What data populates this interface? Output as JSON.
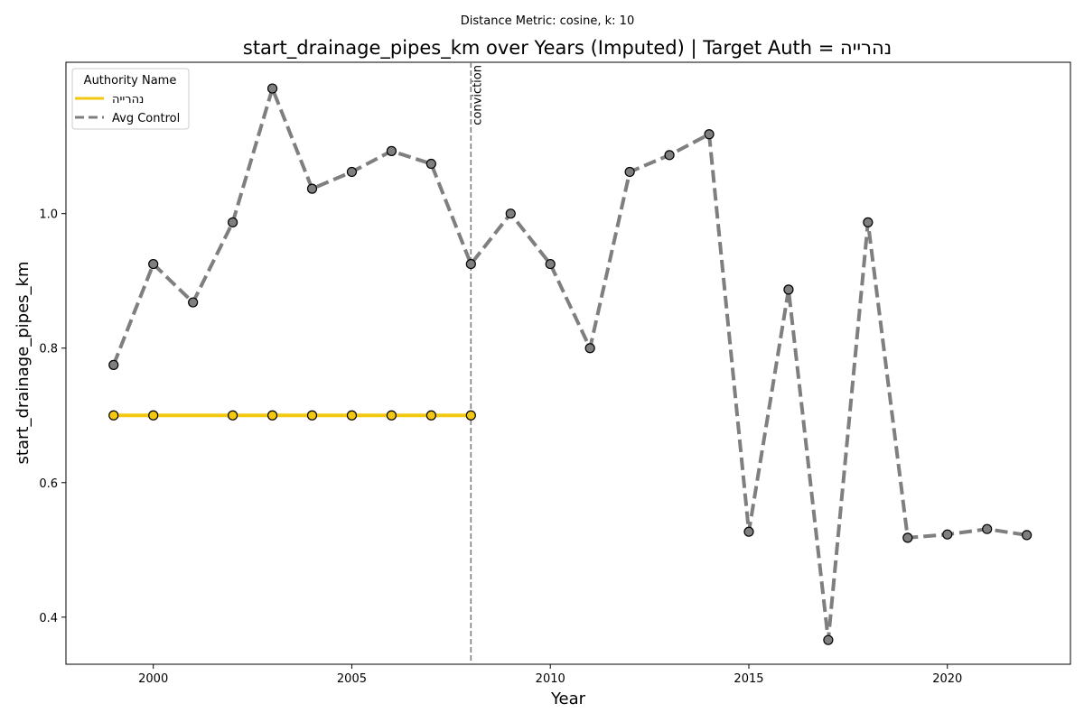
{
  "chart_data": {
    "type": "line",
    "subtitle": "Distance Metric: cosine, k: 10",
    "title": "start_drainage_pipes_km over Years (Imputed) | Target Auth = נהרייה",
    "xlabel": "Year",
    "ylabel": "start_drainage_pipes_km",
    "xlim": [
      1997.8,
      2023.1
    ],
    "ylim": [
      0.33,
      1.225
    ],
    "x_ticks": [
      2000,
      2005,
      2010,
      2015,
      2020
    ],
    "y_ticks": [
      0.4,
      0.6,
      0.8,
      1.0
    ],
    "grid": false,
    "legend": {
      "title": "Authority Name",
      "placement": "top-left"
    },
    "series": [
      {
        "name": "נהרייה",
        "color": "#f2c811",
        "line_style": "solid",
        "x": [
          1999,
          2000,
          2002,
          2003,
          2004,
          2005,
          2006,
          2007,
          2008
        ],
        "values": [
          0.7,
          0.7,
          0.7,
          0.7,
          0.7,
          0.7,
          0.7,
          0.7,
          0.7
        ]
      },
      {
        "name": "Avg Control",
        "color": "#7f7f7f",
        "line_style": "dashed",
        "x": [
          1999,
          2000,
          2001,
          2002,
          2003,
          2004,
          2005,
          2006,
          2007,
          2008,
          2009,
          2010,
          2011,
          2012,
          2013,
          2014,
          2015,
          2016,
          2017,
          2018,
          2019,
          2020,
          2021,
          2022
        ],
        "values": [
          0.775,
          0.925,
          0.868,
          0.987,
          1.186,
          1.037,
          1.062,
          1.093,
          1.074,
          0.925,
          1.0,
          0.925,
          0.8,
          1.062,
          1.087,
          1.118,
          0.527,
          0.887,
          0.366,
          0.987,
          0.518,
          0.523,
          0.531,
          0.522
        ]
      }
    ],
    "annotations": [
      {
        "type": "vline",
        "x": 2008,
        "label": "conviction",
        "color": "#7f7f7f"
      }
    ]
  }
}
